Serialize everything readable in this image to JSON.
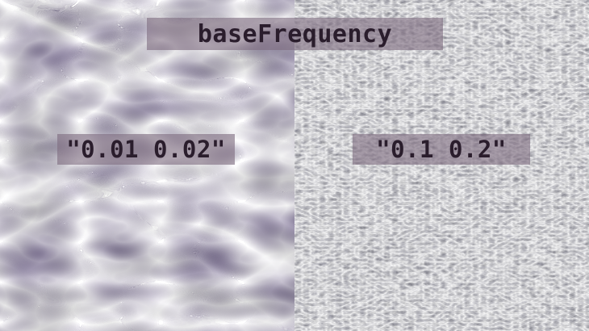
{
  "title": "baseFrequency",
  "examples": [
    {
      "value": "\"0.01 0.02\"",
      "base_frequency": "0.01 0.02"
    },
    {
      "value": "\"0.1 0.2\"",
      "base_frequency": "0.1 0.2"
    }
  ],
  "colors": {
    "label_background": "#7e6c80",
    "label_text": "#2a1d2c"
  }
}
